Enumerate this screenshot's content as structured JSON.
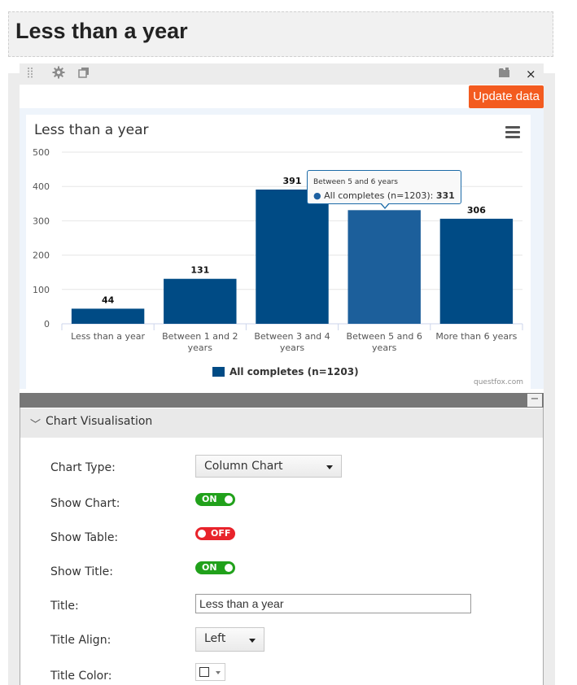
{
  "page": {
    "title": "Less than a year"
  },
  "toolbar": {
    "drag_icon": "drag-handle-icon",
    "settings_icon": "gear-icon",
    "copy_icon": "copy-icon",
    "folder_icon": "folder-icon",
    "close_label": "×"
  },
  "update_button": {
    "label": "Update data"
  },
  "chart_data": {
    "type": "bar",
    "title": "Less than a year",
    "categories": [
      [
        "Less than a year"
      ],
      [
        "Between 1 and 2",
        "years"
      ],
      [
        "Between 3 and 4",
        "years"
      ],
      [
        "Between 5 and 6",
        "years"
      ],
      [
        "More than 6 years"
      ]
    ],
    "series": [
      {
        "name": "All completes (n=1203)",
        "values": [
          44,
          131,
          391,
          331,
          306
        ],
        "color": "#004b85"
      }
    ],
    "data_labels": [
      "44",
      "131",
      "391",
      "",
      "306"
    ],
    "highlight_index": 3,
    "highlight_color": "#1c5f9b",
    "ylim": [
      0,
      500
    ],
    "yticks": [
      0,
      100,
      200,
      300,
      400,
      500
    ],
    "grid": true,
    "legend_position": "bottom-center",
    "credit": "questfox.com"
  },
  "tooltip": {
    "category": "Between 5 and 6 years",
    "series_label": "All completes (n=1203):",
    "value": "331",
    "bullet": "●"
  },
  "section": {
    "title": "Chart Visualisation",
    "chevron": "﹀"
  },
  "form": {
    "chart_type": {
      "label": "Chart Type:",
      "value": "Column Chart"
    },
    "show_chart": {
      "label": "Show Chart:",
      "state": "ON"
    },
    "show_table": {
      "label": "Show Table:",
      "state": "OFF"
    },
    "show_title": {
      "label": "Show Title:",
      "state": "ON"
    },
    "title": {
      "label": "Title:",
      "value": "Less than a year"
    },
    "title_align": {
      "label": "Title Align:",
      "value": "Left"
    },
    "title_color": {
      "label": "Title Color:",
      "value": "#ffffff"
    }
  },
  "collapse_label": "−"
}
